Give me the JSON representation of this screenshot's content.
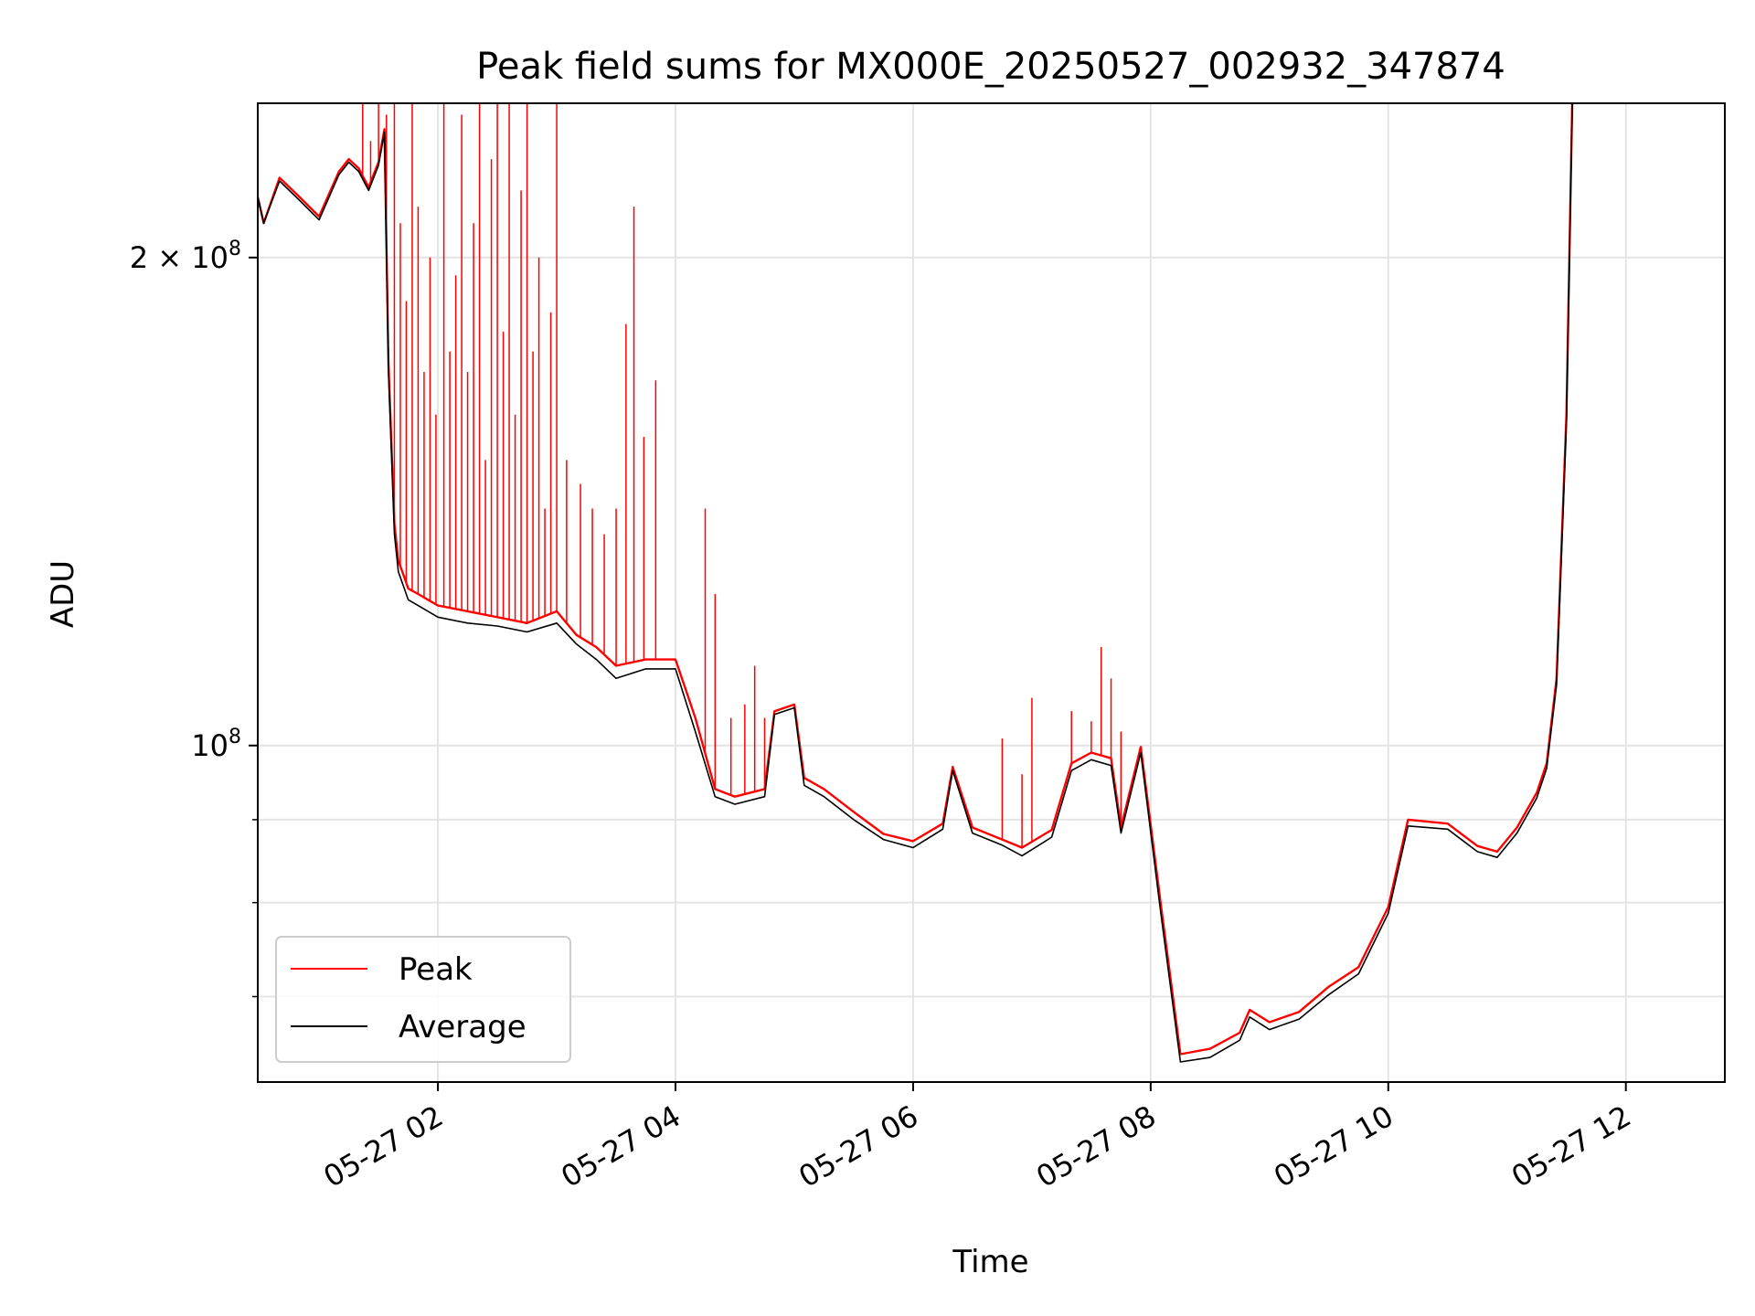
{
  "chart_data": {
    "type": "line",
    "title": "Peak field sums for MX000E_20250527_002932_347874",
    "xlabel": "Time",
    "ylabel": "ADU",
    "yscale": "log",
    "grid": true,
    "legend_position": "lower-left",
    "xlim": [
      "2025-05-27 00:29",
      "2025-05-27 12:50"
    ],
    "ylim": [
      62000000,
      249000000
    ],
    "x_ticks": [
      {
        "t": "2025-05-27 02:00",
        "label": "05-27 02"
      },
      {
        "t": "2025-05-27 04:00",
        "label": "05-27 04"
      },
      {
        "t": "2025-05-27 06:00",
        "label": "05-27 06"
      },
      {
        "t": "2025-05-27 08:00",
        "label": "05-27 08"
      },
      {
        "t": "2025-05-27 10:00",
        "label": "05-27 10"
      },
      {
        "t": "2025-05-27 12:00",
        "label": "05-27 12"
      }
    ],
    "y_ticks": [
      {
        "value": 100000000,
        "base": "10",
        "exp": "8",
        "coef": ""
      },
      {
        "value": 200000000,
        "base": "10",
        "exp": "8",
        "coef": "2 × "
      }
    ],
    "y_minor_ticks": [
      70000000,
      80000000,
      90000000
    ],
    "series": [
      {
        "name": "Peak",
        "color": "#ff0000",
        "x": [
          "2025-05-27 00:29",
          "2025-05-27 00:32",
          "2025-05-27 00:40",
          "2025-05-27 00:50",
          "2025-05-27 01:00",
          "2025-05-27 01:10",
          "2025-05-27 01:15",
          "2025-05-27 01:20",
          "2025-05-27 01:25",
          "2025-05-27 01:30",
          "2025-05-27 01:33",
          "2025-05-27 01:35",
          "2025-05-27 01:38",
          "2025-05-27 01:40",
          "2025-05-27 01:43",
          "2025-05-27 01:45",
          "2025-05-27 01:50",
          "2025-05-27 01:55",
          "2025-05-27 02:00",
          "2025-05-27 02:15",
          "2025-05-27 02:30",
          "2025-05-27 02:45",
          "2025-05-27 03:00",
          "2025-05-27 03:10",
          "2025-05-27 03:20",
          "2025-05-27 03:30",
          "2025-05-27 03:45",
          "2025-05-27 04:00",
          "2025-05-27 04:10",
          "2025-05-27 04:20",
          "2025-05-27 04:30",
          "2025-05-27 04:45",
          "2025-05-27 04:50",
          "2025-05-27 05:00",
          "2025-05-27 05:05",
          "2025-05-27 05:15",
          "2025-05-27 05:30",
          "2025-05-27 05:45",
          "2025-05-27 06:00",
          "2025-05-27 06:15",
          "2025-05-27 06:20",
          "2025-05-27 06:30",
          "2025-05-27 06:45",
          "2025-05-27 06:55",
          "2025-05-27 07:10",
          "2025-05-27 07:20",
          "2025-05-27 07:30",
          "2025-05-27 07:40",
          "2025-05-27 07:45",
          "2025-05-27 07:55",
          "2025-05-27 08:05",
          "2025-05-27 08:15",
          "2025-05-27 08:30",
          "2025-05-27 08:45",
          "2025-05-27 08:50",
          "2025-05-27 09:00",
          "2025-05-27 09:15",
          "2025-05-27 09:30",
          "2025-05-27 09:45",
          "2025-05-27 10:00",
          "2025-05-27 10:10",
          "2025-05-27 10:30",
          "2025-05-27 10:45",
          "2025-05-27 10:55",
          "2025-05-27 11:05",
          "2025-05-27 11:15",
          "2025-05-27 11:20",
          "2025-05-27 11:25",
          "2025-05-27 11:30",
          "2025-05-27 11:33"
        ],
        "y": [
          218000000,
          210000000,
          224000000,
          218000000,
          212000000,
          226000000,
          230000000,
          227000000,
          221000000,
          229000000,
          240000000,
          172000000,
          137000000,
          130000000,
          127000000,
          125000000,
          124000000,
          123000000,
          122000000,
          121000000,
          120000000,
          119000000,
          121000000,
          117000000,
          115000000,
          112000000,
          113000000,
          113000000,
          104000000,
          94000000,
          93000000,
          94000000,
          105000000,
          106000000,
          95500000,
          94000000,
          91000000,
          88200000,
          87300000,
          89500000,
          97000000,
          89000000,
          87500000,
          86500000,
          88700000,
          97500000,
          99000000,
          98200000,
          89000000,
          99800000,
          80000000,
          64500000,
          65000000,
          66500000,
          68700000,
          67500000,
          68500000,
          71000000,
          73000000,
          79500000,
          90000000,
          89500000,
          86700000,
          86000000,
          89000000,
          93500000,
          97500000,
          110000000,
          160000000,
          252000000
        ]
      },
      {
        "name": "Average",
        "color": "#000000",
        "x": [
          "2025-05-27 00:29",
          "2025-05-27 00:32",
          "2025-05-27 00:40",
          "2025-05-27 00:50",
          "2025-05-27 01:00",
          "2025-05-27 01:10",
          "2025-05-27 01:15",
          "2025-05-27 01:20",
          "2025-05-27 01:25",
          "2025-05-27 01:30",
          "2025-05-27 01:33",
          "2025-05-27 01:35",
          "2025-05-27 01:38",
          "2025-05-27 01:40",
          "2025-05-27 01:43",
          "2025-05-27 01:45",
          "2025-05-27 01:50",
          "2025-05-27 01:55",
          "2025-05-27 02:00",
          "2025-05-27 02:15",
          "2025-05-27 02:30",
          "2025-05-27 02:45",
          "2025-05-27 03:00",
          "2025-05-27 03:10",
          "2025-05-27 03:20",
          "2025-05-27 03:30",
          "2025-05-27 03:45",
          "2025-05-27 04:00",
          "2025-05-27 04:10",
          "2025-05-27 04:20",
          "2025-05-27 04:30",
          "2025-05-27 04:45",
          "2025-05-27 04:50",
          "2025-05-27 05:00",
          "2025-05-27 05:05",
          "2025-05-27 05:15",
          "2025-05-27 05:30",
          "2025-05-27 05:45",
          "2025-05-27 06:00",
          "2025-05-27 06:15",
          "2025-05-27 06:20",
          "2025-05-27 06:30",
          "2025-05-27 06:45",
          "2025-05-27 06:55",
          "2025-05-27 07:10",
          "2025-05-27 07:20",
          "2025-05-27 07:30",
          "2025-05-27 07:40",
          "2025-05-27 07:45",
          "2025-05-27 07:55",
          "2025-05-27 08:05",
          "2025-05-27 08:15",
          "2025-05-27 08:30",
          "2025-05-27 08:45",
          "2025-05-27 08:50",
          "2025-05-27 09:00",
          "2025-05-27 09:15",
          "2025-05-27 09:30",
          "2025-05-27 09:45",
          "2025-05-27 10:00",
          "2025-05-27 10:10",
          "2025-05-27 10:30",
          "2025-05-27 10:45",
          "2025-05-27 10:55",
          "2025-05-27 11:05",
          "2025-05-27 11:15",
          "2025-05-27 11:20",
          "2025-05-27 11:25",
          "2025-05-27 11:30",
          "2025-05-27 11:33"
        ],
        "y": [
          218000000,
          210000000,
          223000000,
          217000000,
          211000000,
          225000000,
          229000000,
          226000000,
          220000000,
          228000000,
          239000000,
          170000000,
          135000000,
          128000000,
          125000000,
          123000000,
          122000000,
          121000000,
          120000000,
          119000000,
          118500000,
          117500000,
          119000000,
          115500000,
          113000000,
          110000000,
          111500000,
          111500000,
          102000000,
          93000000,
          92000000,
          93000000,
          104500000,
          105500000,
          94500000,
          93000000,
          90000000,
          87500000,
          86500000,
          88800000,
          96500000,
          88300000,
          86800000,
          85500000,
          87800000,
          96500000,
          98000000,
          97200000,
          88300000,
          99000000,
          79000000,
          63800000,
          64200000,
          65800000,
          68000000,
          66800000,
          67800000,
          70200000,
          72300000,
          78800000,
          89200000,
          88800000,
          86000000,
          85300000,
          88300000,
          92800000,
          96800000,
          109000000,
          158000000,
          250000000
        ]
      }
    ],
    "peak_spikes": [
      {
        "t": "2025-05-27 01:22",
        "y": 250000000
      },
      {
        "t": "2025-05-27 01:26",
        "y": 236000000
      },
      {
        "t": "2025-05-27 01:30",
        "y": 252000000
      },
      {
        "t": "2025-05-27 01:34",
        "y": 245000000
      },
      {
        "t": "2025-05-27 01:38",
        "y": 252000000
      },
      {
        "t": "2025-05-27 01:41",
        "y": 210000000
      },
      {
        "t": "2025-05-27 01:44",
        "y": 188000000
      },
      {
        "t": "2025-05-27 01:47",
        "y": 252000000
      },
      {
        "t": "2025-05-27 01:50",
        "y": 215000000
      },
      {
        "t": "2025-05-27 01:53",
        "y": 170000000
      },
      {
        "t": "2025-05-27 01:56",
        "y": 200000000
      },
      {
        "t": "2025-05-27 01:59",
        "y": 160000000
      },
      {
        "t": "2025-05-27 02:03",
        "y": 252000000
      },
      {
        "t": "2025-05-27 02:06",
        "y": 175000000
      },
      {
        "t": "2025-05-27 02:09",
        "y": 195000000
      },
      {
        "t": "2025-05-27 02:12",
        "y": 245000000
      },
      {
        "t": "2025-05-27 02:15",
        "y": 170000000
      },
      {
        "t": "2025-05-27 02:18",
        "y": 210000000
      },
      {
        "t": "2025-05-27 02:21",
        "y": 252000000
      },
      {
        "t": "2025-05-27 02:24",
        "y": 150000000
      },
      {
        "t": "2025-05-27 02:27",
        "y": 230000000
      },
      {
        "t": "2025-05-27 02:30",
        "y": 252000000
      },
      {
        "t": "2025-05-27 02:33",
        "y": 180000000
      },
      {
        "t": "2025-05-27 02:36",
        "y": 252000000
      },
      {
        "t": "2025-05-27 02:39",
        "y": 160000000
      },
      {
        "t": "2025-05-27 02:42",
        "y": 220000000
      },
      {
        "t": "2025-05-27 02:45",
        "y": 252000000
      },
      {
        "t": "2025-05-27 02:48",
        "y": 175000000
      },
      {
        "t": "2025-05-27 02:51",
        "y": 200000000
      },
      {
        "t": "2025-05-27 02:54",
        "y": 140000000
      },
      {
        "t": "2025-05-27 02:57",
        "y": 185000000
      },
      {
        "t": "2025-05-27 03:00",
        "y": 252000000
      },
      {
        "t": "2025-05-27 03:05",
        "y": 150000000
      },
      {
        "t": "2025-05-27 03:12",
        "y": 145000000
      },
      {
        "t": "2025-05-27 03:18",
        "y": 140000000
      },
      {
        "t": "2025-05-27 03:24",
        "y": 135000000
      },
      {
        "t": "2025-05-27 03:30",
        "y": 140000000
      },
      {
        "t": "2025-05-27 03:35",
        "y": 182000000
      },
      {
        "t": "2025-05-27 03:39",
        "y": 215000000
      },
      {
        "t": "2025-05-27 03:44",
        "y": 155000000
      },
      {
        "t": "2025-05-27 03:50",
        "y": 168000000
      },
      {
        "t": "2025-05-27 04:15",
        "y": 140000000
      },
      {
        "t": "2025-05-27 04:20",
        "y": 124000000
      },
      {
        "t": "2025-05-27 04:28",
        "y": 104000000
      },
      {
        "t": "2025-05-27 04:35",
        "y": 106000000
      },
      {
        "t": "2025-05-27 04:40",
        "y": 112000000
      },
      {
        "t": "2025-05-27 04:45",
        "y": 104000000
      },
      {
        "t": "2025-05-27 06:45",
        "y": 101000000
      },
      {
        "t": "2025-05-27 06:55",
        "y": 96000000
      },
      {
        "t": "2025-05-27 07:00",
        "y": 107000000
      },
      {
        "t": "2025-05-27 07:20",
        "y": 105000000
      },
      {
        "t": "2025-05-27 07:30",
        "y": 103500000
      },
      {
        "t": "2025-05-27 07:35",
        "y": 115000000
      },
      {
        "t": "2025-05-27 07:40",
        "y": 110000000
      },
      {
        "t": "2025-05-27 07:45",
        "y": 102000000
      }
    ]
  },
  "legend": {
    "items": [
      {
        "label": "Peak",
        "color": "#ff0000"
      },
      {
        "label": "Average",
        "color": "#000000"
      }
    ]
  }
}
